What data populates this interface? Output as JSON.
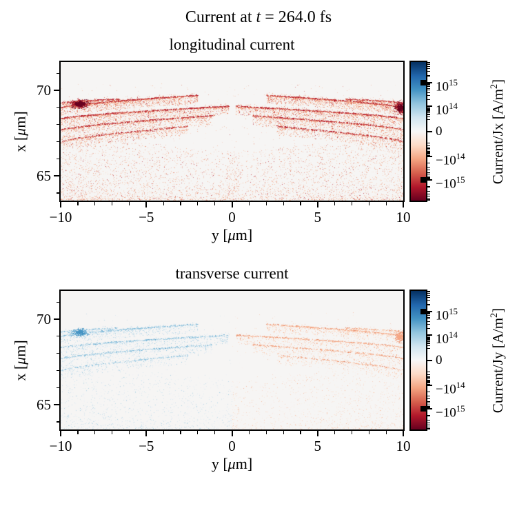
{
  "figure": {
    "title_parts": [
      "Current at ",
      {
        "i": "t"
      },
      " = 264.0 fs"
    ],
    "background": "#ffffff"
  },
  "chart_data": [
    {
      "type": "scatter",
      "title": "longitudinal current",
      "xlabel_parts": [
        "y [",
        {
          "i": "μ"
        },
        "m]"
      ],
      "ylabel_parts": [
        "x [",
        {
          "i": "μ"
        },
        "m]"
      ],
      "xlim": [
        -10,
        10
      ],
      "ylim": [
        63.55,
        71.65
      ],
      "xticks": [
        -10,
        -5,
        0,
        5,
        10
      ],
      "xtick_labels": [
        "−10",
        "−5",
        "0",
        "5",
        "10"
      ],
      "yticks": [
        70,
        65
      ],
      "ytick_labels": [
        "70",
        "65"
      ],
      "bg": "#f6f5f4",
      "density": 1.0,
      "colorbar": {
        "label_parts": [
          "Current/Jx [A/m",
          {
            "sup": "2"
          },
          "]"
        ],
        "scale": "symlog",
        "linthresh": 10000000000000.0,
        "vmax": 7500000000000000.0,
        "ticks": [
          {
            "v": 1000000000000000.0,
            "label": "10^15"
          },
          {
            "v": 100000000000000.0,
            "label": "10^14"
          },
          {
            "v": 0,
            "label": "0"
          },
          {
            "v": -100000000000000.0,
            "label": "−10^14"
          },
          {
            "v": -1000000000000000.0,
            "label": "−10^15"
          }
        ],
        "colormap": "RdBu",
        "gradient": [
          "#053061",
          "#2166ac",
          "#4393c3",
          "#92c5de",
          "#d1e5f0",
          "#f7f7f7",
          "#fddbc7",
          "#f4a582",
          "#d6604d",
          "#b2182b",
          "#67001f"
        ]
      },
      "colors": {
        "left": {
          "line": [
            [
              "#b2182b",
              0.5
            ],
            [
              "#c53a3a",
              0.25
            ],
            [
              "#d6604d",
              0.25
            ]
          ],
          "spray": [
            [
              "#fddbc7",
              0.3
            ],
            [
              "#f4a582",
              0.34
            ],
            [
              "#e98b6c",
              0.18
            ],
            [
              "#d6604d",
              0.13
            ],
            [
              "#b2182b",
              0.05
            ]
          ],
          "blob": [
            [
              "#67001f",
              0.35
            ],
            [
              "#b2182b",
              0.4
            ],
            [
              "#d6604d",
              0.25
            ]
          ]
        },
        "right": {
          "line": [
            [
              "#b2182b",
              0.5
            ],
            [
              "#c53a3a",
              0.25
            ],
            [
              "#d6604d",
              0.25
            ]
          ],
          "spray": [
            [
              "#fddbc7",
              0.3
            ],
            [
              "#f4a582",
              0.34
            ],
            [
              "#e98b6c",
              0.18
            ],
            [
              "#d6604d",
              0.13
            ],
            [
              "#b2182b",
              0.05
            ]
          ],
          "blob": [
            [
              "#67001f",
              0.35
            ],
            [
              "#b2182b",
              0.4
            ],
            [
              "#d6604d",
              0.25
            ]
          ]
        }
      },
      "features": [
        {
          "type": "band",
          "u0": -10,
          "u1": -2.0,
          "v0": 69.0,
          "v1": 69.72,
          "n": 2400,
          "depth": 0.45,
          "mirror": true
        },
        {
          "type": "band",
          "u0": -10,
          "u1": -6.6,
          "v0": 69.28,
          "v1": 69.5,
          "n": 600,
          "depth": 0.22,
          "mirror": true
        },
        {
          "type": "band",
          "u0": -10,
          "u1": -0.2,
          "v0": 68.35,
          "v1": 69.08,
          "n": 2400,
          "depth": 0.5,
          "mirror": true
        },
        {
          "type": "band",
          "u0": -10,
          "u1": -1.2,
          "v0": 67.7,
          "v1": 68.52,
          "n": 1800,
          "depth": 0.55,
          "mirror": true
        },
        {
          "type": "band",
          "u0": -10,
          "u1": -2.6,
          "v0": 67.0,
          "v1": 67.9,
          "n": 1100,
          "depth": 0.5,
          "mirror": true
        },
        {
          "type": "blob",
          "u": -8.9,
          "v": 69.22,
          "ru": 0.45,
          "rv": 0.22,
          "n": 700
        },
        {
          "type": "blob",
          "u": 9.8,
          "v": 69.0,
          "ru": 0.3,
          "rv": 0.32,
          "n": 450
        },
        {
          "type": "fan",
          "u0": -10,
          "u1": 0.4,
          "vbase": 63.6,
          "hEdge": 3.8,
          "hCenter": 2.8,
          "n": 3400,
          "mirror": true
        },
        {
          "type": "noise",
          "n": 600
        }
      ]
    },
    {
      "type": "scatter",
      "title": "transverse current",
      "xlabel_parts": [
        "y [",
        {
          "i": "μ"
        },
        "m]"
      ],
      "ylabel_parts": [
        "x [",
        {
          "i": "μ"
        },
        "m]"
      ],
      "xlim": [
        -10,
        10
      ],
      "ylim": [
        63.55,
        71.65
      ],
      "xticks": [
        -10,
        -5,
        0,
        5,
        10
      ],
      "xtick_labels": [
        "−10",
        "−5",
        "0",
        "5",
        "10"
      ],
      "yticks": [
        70,
        65
      ],
      "ytick_labels": [
        "70",
        "65"
      ],
      "bg": "#f6f5f4",
      "density": 0.55,
      "colorbar": {
        "label_parts": [
          "Current/Jy [A/m",
          {
            "sup": "2"
          },
          "]"
        ],
        "scale": "symlog",
        "linthresh": 10000000000000.0,
        "vmax": 7500000000000000.0,
        "ticks": [
          {
            "v": 1000000000000000.0,
            "label": "10^15"
          },
          {
            "v": 100000000000000.0,
            "label": "10^14"
          },
          {
            "v": 0,
            "label": "0"
          },
          {
            "v": -100000000000000.0,
            "label": "−10^14"
          },
          {
            "v": -1000000000000000.0,
            "label": "−10^15"
          }
        ],
        "colormap": "RdBu",
        "gradient": [
          "#053061",
          "#2166ac",
          "#4393c3",
          "#92c5de",
          "#d1e5f0",
          "#f7f7f7",
          "#fddbc7",
          "#f4a582",
          "#d6604d",
          "#b2182b",
          "#67001f"
        ]
      },
      "colors": {
        "left": {
          "line": [
            [
              "#92c5de",
              0.45
            ],
            [
              "#b3d5e8",
              0.35
            ],
            [
              "#5fa5cd",
              0.2
            ]
          ],
          "spray": [
            [
              "#eaf2f8",
              0.3
            ],
            [
              "#d1e5f0",
              0.35
            ],
            [
              "#b3d5e8",
              0.2
            ],
            [
              "#92c5de",
              0.15
            ]
          ],
          "blob": [
            [
              "#4393c3",
              0.3
            ],
            [
              "#74b0d4",
              0.4
            ],
            [
              "#92c5de",
              0.3
            ]
          ]
        },
        "right": {
          "line": [
            [
              "#f4a582",
              0.5
            ],
            [
              "#f7bd9e",
              0.3
            ],
            [
              "#e08263",
              0.2
            ]
          ],
          "spray": [
            [
              "#fcefe6",
              0.3
            ],
            [
              "#fddbc7",
              0.35
            ],
            [
              "#f9c7a9",
              0.2
            ],
            [
              "#f4a582",
              0.15
            ]
          ],
          "blob": [
            [
              "#f4a582",
              0.5
            ],
            [
              "#e58a67",
              0.5
            ]
          ]
        }
      },
      "features": [
        {
          "type": "band",
          "u0": -10,
          "u1": -2.0,
          "v0": 69.0,
          "v1": 69.72,
          "n": 2400,
          "depth": 0.45,
          "mirror": true
        },
        {
          "type": "band",
          "u0": -10,
          "u1": -6.6,
          "v0": 69.28,
          "v1": 69.5,
          "n": 600,
          "depth": 0.22,
          "mirror": true
        },
        {
          "type": "band",
          "u0": -10,
          "u1": -0.2,
          "v0": 68.35,
          "v1": 69.08,
          "n": 2400,
          "depth": 0.5,
          "mirror": true
        },
        {
          "type": "band",
          "u0": -10,
          "u1": -1.2,
          "v0": 67.7,
          "v1": 68.52,
          "n": 1800,
          "depth": 0.55,
          "mirror": true
        },
        {
          "type": "band",
          "u0": -10,
          "u1": -2.6,
          "v0": 67.0,
          "v1": 67.9,
          "n": 1100,
          "depth": 0.5,
          "mirror": true
        },
        {
          "type": "blob",
          "u": -8.9,
          "v": 69.22,
          "ru": 0.45,
          "rv": 0.22,
          "n": 700
        },
        {
          "type": "blob",
          "u": 9.8,
          "v": 69.0,
          "ru": 0.3,
          "rv": 0.32,
          "n": 450
        },
        {
          "type": "fan",
          "u0": -10,
          "u1": 0.4,
          "vbase": 63.6,
          "hEdge": 3.8,
          "hCenter": 2.8,
          "n": 3400,
          "mirror": true
        },
        {
          "type": "noise",
          "n": 600
        }
      ]
    }
  ]
}
